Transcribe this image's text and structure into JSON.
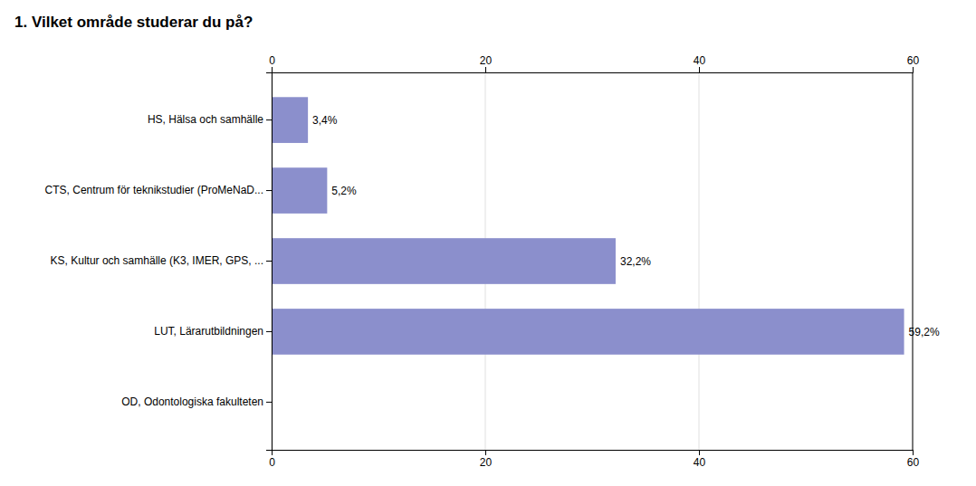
{
  "chart_data": {
    "type": "bar",
    "orientation": "horizontal",
    "title": "1. Vilket område studerar du på?",
    "categories": [
      "OD, Odontologiska fakulteten",
      "LUT, Lärarutbildningen",
      "KS, Kultur och samhälle (K3, IMER, GPS, ...",
      "CTS, Centrum för teknikstudier (ProMeNaD...",
      "HS, Hälsa och samhälle"
    ],
    "values": [
      0.0,
      59.2,
      32.2,
      5.2,
      3.4
    ],
    "value_labels": [
      null,
      "59,2%",
      "32,2%",
      "5,2%",
      "3,4%"
    ],
    "color": "#8b8fcc",
    "xlim": [
      0,
      60
    ],
    "xticks": [
      0,
      20,
      40,
      60
    ],
    "grid": true
  }
}
